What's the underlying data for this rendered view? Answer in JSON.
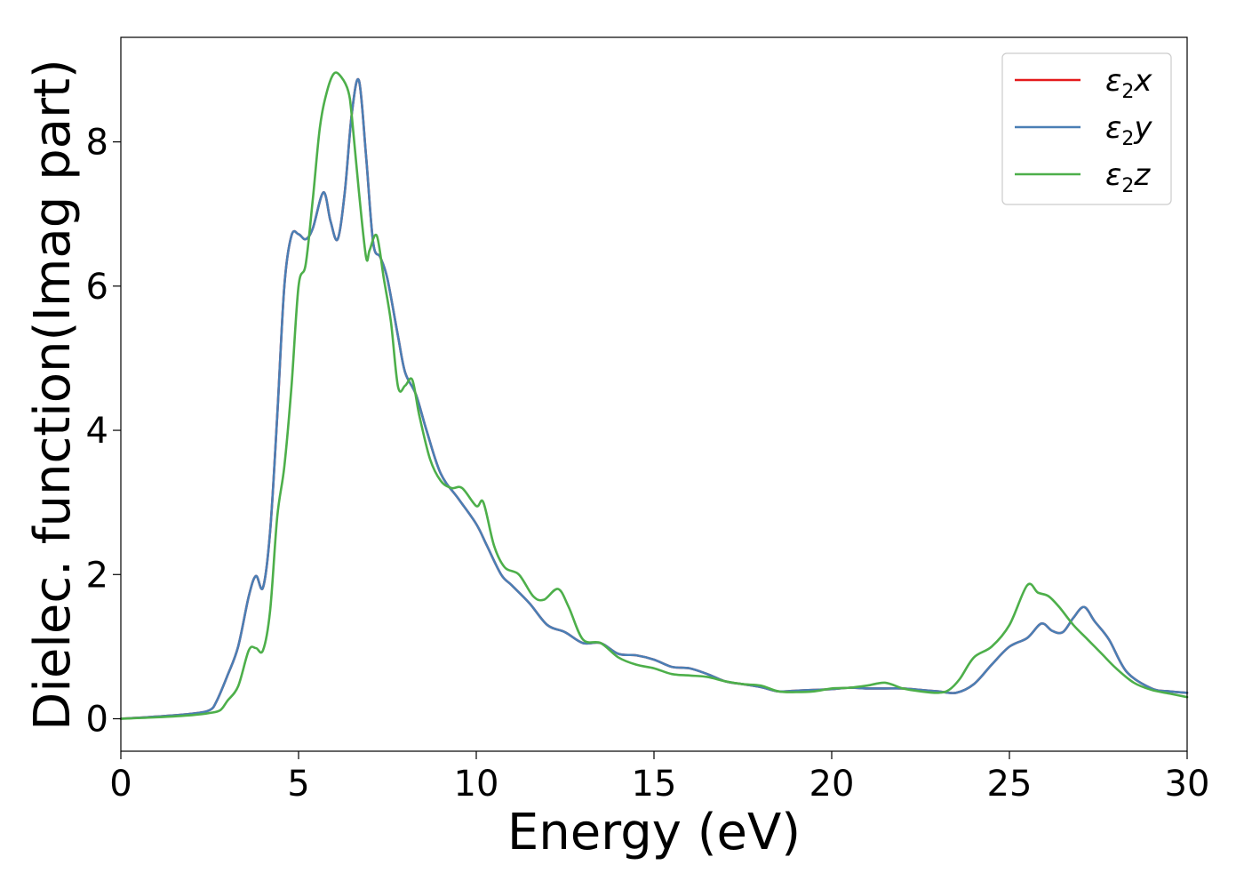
{
  "chart_data": {
    "type": "line",
    "xlabel": "Energy (eV)",
    "ylabel": "Dielec. function(Imag part)",
    "xlim": [
      0,
      30
    ],
    "ylim": [
      -0.45,
      9.45
    ],
    "xticks": [
      0,
      5,
      10,
      15,
      20,
      25,
      30
    ],
    "yticks": [
      0,
      2,
      4,
      6,
      8
    ],
    "xtick_labels": [
      "0",
      "5",
      "10",
      "15",
      "20",
      "25",
      "30"
    ],
    "ytick_labels": [
      "0",
      "2",
      "4",
      "6",
      "8"
    ],
    "grid": false,
    "legend_position": "top-right",
    "legend": [
      {
        "sym": "ε",
        "sub": "2",
        "var": "x",
        "color": "#e41a1c"
      },
      {
        "sym": "ε",
        "sub": "2",
        "var": "y",
        "color": "#4a7fb5"
      },
      {
        "sym": "ε",
        "sub": "2",
        "var": "z",
        "color": "#4daf4a"
      }
    ],
    "series": [
      {
        "name": "ε2x",
        "color": "#e41a1c",
        "x": [
          0,
          1,
          2,
          2.5,
          2.7,
          3.0,
          3.3,
          3.6,
          3.8,
          4.0,
          4.2,
          4.4,
          4.6,
          4.8,
          5.0,
          5.2,
          5.4,
          5.7,
          5.9,
          6.1,
          6.3,
          6.5,
          6.7,
          6.9,
          7.1,
          7.3,
          7.5,
          7.8,
          8.0,
          8.3,
          8.6,
          9.0,
          9.5,
          10.0,
          10.3,
          10.7,
          11.0,
          11.5,
          12.0,
          12.5,
          13.0,
          13.5,
          14.0,
          14.5,
          15.0,
          15.5,
          16.0,
          16.5,
          17.0,
          17.5,
          18.0,
          18.5,
          19.0,
          19.5,
          20.0,
          20.5,
          21.0,
          21.5,
          22.0,
          22.5,
          23.0,
          23.5,
          24.0,
          24.5,
          25.0,
          25.5,
          25.9,
          26.2,
          26.5,
          26.8,
          27.1,
          27.4,
          27.8,
          28.3,
          29.0,
          29.5,
          30.0
        ],
        "y": [
          0,
          0.03,
          0.07,
          0.12,
          0.25,
          0.6,
          1.0,
          1.7,
          1.98,
          1.82,
          2.6,
          4.2,
          6.0,
          6.7,
          6.72,
          6.65,
          6.8,
          7.3,
          6.9,
          6.65,
          7.3,
          8.4,
          8.85,
          7.8,
          6.6,
          6.4,
          6.1,
          5.3,
          4.8,
          4.5,
          4.0,
          3.4,
          3.05,
          2.7,
          2.4,
          2.0,
          1.85,
          1.6,
          1.3,
          1.2,
          1.05,
          1.05,
          0.9,
          0.88,
          0.82,
          0.72,
          0.7,
          0.62,
          0.52,
          0.48,
          0.44,
          0.38,
          0.39,
          0.4,
          0.41,
          0.43,
          0.42,
          0.42,
          0.42,
          0.4,
          0.38,
          0.36,
          0.48,
          0.75,
          1.0,
          1.12,
          1.32,
          1.22,
          1.2,
          1.4,
          1.55,
          1.35,
          1.1,
          0.65,
          0.42,
          0.38,
          0.36
        ]
      },
      {
        "name": "ε2y",
        "color": "#4a7fb5",
        "x": [
          0,
          1,
          2,
          2.5,
          2.7,
          3.0,
          3.3,
          3.6,
          3.8,
          4.0,
          4.2,
          4.4,
          4.6,
          4.8,
          5.0,
          5.2,
          5.4,
          5.7,
          5.9,
          6.1,
          6.3,
          6.5,
          6.7,
          6.9,
          7.1,
          7.3,
          7.5,
          7.8,
          8.0,
          8.3,
          8.6,
          9.0,
          9.5,
          10.0,
          10.3,
          10.7,
          11.0,
          11.5,
          12.0,
          12.5,
          13.0,
          13.5,
          14.0,
          14.5,
          15.0,
          15.5,
          16.0,
          16.5,
          17.0,
          17.5,
          18.0,
          18.5,
          19.0,
          19.5,
          20.0,
          20.5,
          21.0,
          21.5,
          22.0,
          22.5,
          23.0,
          23.5,
          24.0,
          24.5,
          25.0,
          25.5,
          25.9,
          26.2,
          26.5,
          26.8,
          27.1,
          27.4,
          27.8,
          28.3,
          29.0,
          29.5,
          30.0
        ],
        "y": [
          0,
          0.03,
          0.07,
          0.12,
          0.25,
          0.6,
          1.0,
          1.7,
          1.98,
          1.82,
          2.6,
          4.2,
          6.0,
          6.7,
          6.72,
          6.65,
          6.8,
          7.3,
          6.9,
          6.65,
          7.3,
          8.4,
          8.85,
          7.8,
          6.6,
          6.4,
          6.1,
          5.3,
          4.8,
          4.5,
          4.0,
          3.4,
          3.05,
          2.7,
          2.4,
          2.0,
          1.85,
          1.6,
          1.3,
          1.2,
          1.05,
          1.05,
          0.9,
          0.88,
          0.82,
          0.72,
          0.7,
          0.62,
          0.52,
          0.48,
          0.44,
          0.38,
          0.39,
          0.4,
          0.41,
          0.43,
          0.42,
          0.42,
          0.42,
          0.4,
          0.38,
          0.36,
          0.48,
          0.75,
          1.0,
          1.12,
          1.32,
          1.22,
          1.2,
          1.4,
          1.55,
          1.35,
          1.1,
          0.65,
          0.42,
          0.38,
          0.36
        ]
      },
      {
        "name": "ε2z",
        "color": "#4daf4a",
        "x": [
          0,
          1,
          2,
          2.5,
          2.8,
          3.0,
          3.3,
          3.6,
          3.8,
          4.0,
          4.2,
          4.4,
          4.6,
          4.8,
          5.0,
          5.2,
          5.4,
          5.6,
          5.8,
          6.0,
          6.2,
          6.4,
          6.5,
          6.7,
          6.9,
          7.0,
          7.2,
          7.4,
          7.6,
          7.8,
          8.0,
          8.2,
          8.4,
          8.7,
          9.0,
          9.3,
          9.6,
          10.0,
          10.2,
          10.5,
          10.8,
          11.2,
          11.6,
          11.9,
          12.3,
          12.6,
          13.0,
          13.5,
          14.0,
          14.5,
          15.0,
          15.5,
          16.0,
          16.5,
          17.0,
          17.5,
          18.0,
          18.5,
          19.0,
          19.5,
          20.0,
          20.5,
          21.0,
          21.5,
          22.0,
          22.5,
          23.0,
          23.3,
          23.6,
          24.0,
          24.5,
          25.0,
          25.5,
          25.8,
          26.1,
          26.4,
          26.8,
          27.2,
          27.6,
          28.0,
          28.5,
          29.0,
          29.5,
          30.0
        ],
        "y": [
          0,
          0.02,
          0.05,
          0.08,
          0.12,
          0.25,
          0.45,
          0.95,
          0.98,
          0.95,
          1.5,
          2.8,
          3.5,
          4.6,
          6.0,
          6.3,
          7.2,
          8.2,
          8.7,
          8.95,
          8.9,
          8.7,
          8.35,
          7.3,
          6.4,
          6.5,
          6.7,
          6.1,
          5.5,
          4.6,
          4.62,
          4.7,
          4.2,
          3.6,
          3.3,
          3.2,
          3.2,
          2.95,
          3.0,
          2.4,
          2.1,
          2.0,
          1.7,
          1.65,
          1.8,
          1.55,
          1.1,
          1.05,
          0.85,
          0.75,
          0.7,
          0.62,
          0.6,
          0.58,
          0.52,
          0.48,
          0.46,
          0.38,
          0.37,
          0.38,
          0.42,
          0.43,
          0.46,
          0.5,
          0.42,
          0.38,
          0.36,
          0.4,
          0.55,
          0.85,
          1.0,
          1.3,
          1.85,
          1.75,
          1.7,
          1.55,
          1.3,
          1.1,
          0.9,
          0.7,
          0.5,
          0.4,
          0.35,
          0.3
        ]
      }
    ]
  }
}
